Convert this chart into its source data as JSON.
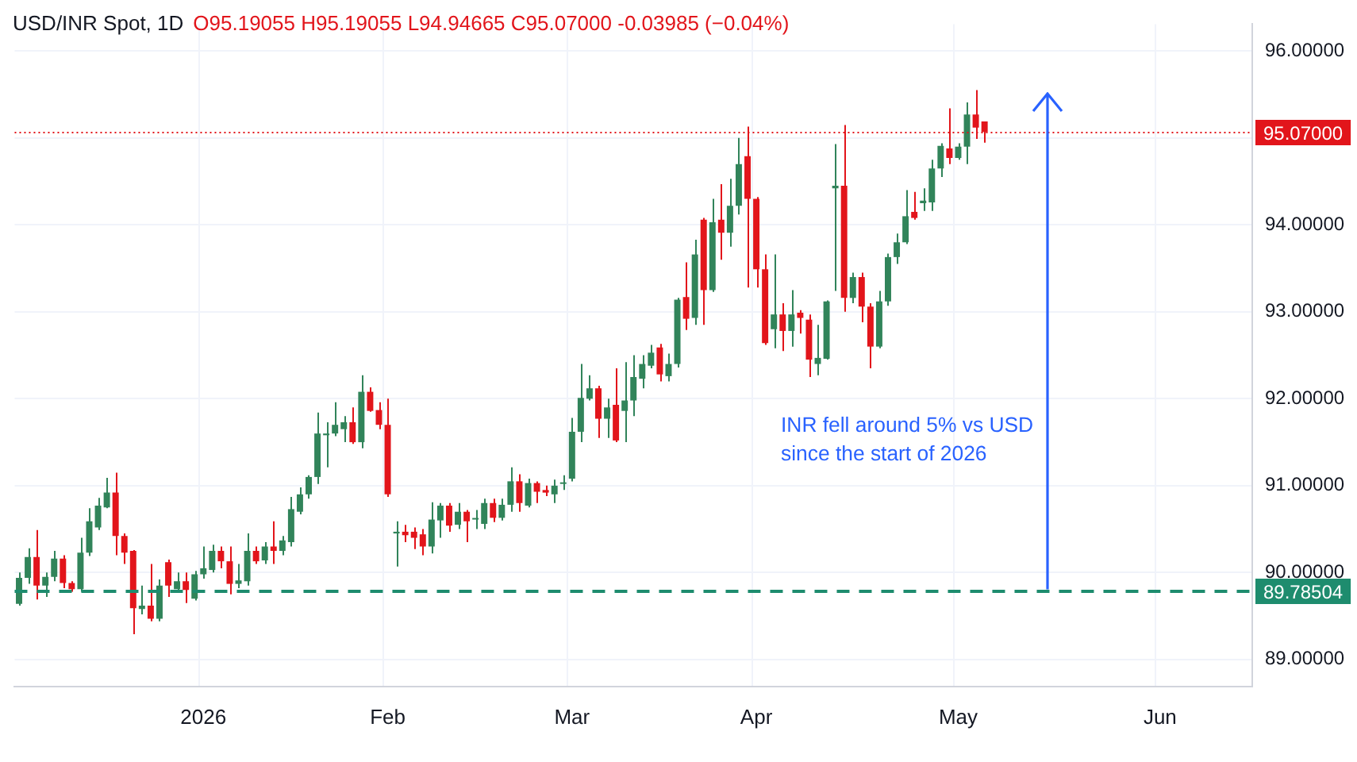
{
  "chart_data": {
    "type": "candlestick",
    "title": "USD/INR Spot, 1D",
    "subtitle": "O95.19055 H95.19055 L94.94665 C95.07000 -0.03985 (−0.04%)",
    "annotations": [
      "INR fell around 5% vs USD since the start of 2026"
    ],
    "categories": [
      null,
      null,
      null,
      null,
      null,
      null,
      null,
      null,
      null,
      null,
      null,
      null,
      null,
      null,
      null,
      null,
      null,
      null,
      null,
      null,
      null,
      "2026",
      null,
      null,
      null,
      null,
      null,
      null,
      null,
      null,
      null,
      null,
      null,
      null,
      null,
      null,
      null,
      null,
      null,
      null,
      null,
      null,
      "Feb",
      null,
      null,
      null,
      null,
      null,
      null,
      null,
      null,
      null,
      null,
      null,
      null,
      null,
      null,
      null,
      null,
      null,
      null,
      null,
      null,
      "Mar",
      null,
      null,
      null,
      null,
      null,
      null,
      null,
      null,
      null,
      null,
      null,
      null,
      null,
      null,
      null,
      null,
      null,
      null,
      null,
      null,
      "Apr",
      null,
      null,
      null,
      null,
      null,
      null,
      null,
      null,
      null,
      null,
      null,
      null,
      null,
      null,
      null,
      null,
      null,
      null,
      null,
      null,
      null,
      null,
      "May",
      null,
      null,
      null,
      null,
      null,
      null,
      null,
      null,
      null,
      null,
      null,
      null,
      null,
      null,
      null,
      null,
      null,
      null,
      null,
      null,
      null,
      null,
      "Jun",
      null,
      null,
      null,
      null,
      null,
      null,
      null,
      null,
      null,
      null
    ],
    "ohlc": [
      [
        89.64,
        90.0,
        89.62,
        89.94
      ],
      [
        89.94,
        90.28,
        89.87,
        90.18
      ],
      [
        90.18,
        90.49,
        89.69,
        89.85
      ],
      [
        89.85,
        90.0,
        89.72,
        89.95
      ],
      [
        89.95,
        90.25,
        89.9,
        90.16
      ],
      [
        90.16,
        90.2,
        89.82,
        89.88
      ],
      [
        89.88,
        89.9,
        89.78,
        89.81
      ],
      [
        89.81,
        90.4,
        89.78,
        90.23
      ],
      [
        90.23,
        90.74,
        90.19,
        90.59
      ],
      [
        90.52,
        90.86,
        90.49,
        90.77
      ],
      [
        90.75,
        91.09,
        90.74,
        90.92
      ],
      [
        90.92,
        91.15,
        90.2,
        90.42
      ],
      [
        90.42,
        90.45,
        90.1,
        90.23
      ],
      [
        90.25,
        90.26,
        89.29,
        89.59
      ],
      [
        89.58,
        89.85,
        89.52,
        89.62
      ],
      [
        89.62,
        90.1,
        89.44,
        89.47
      ],
      [
        89.47,
        89.92,
        89.44,
        89.85
      ],
      [
        90.12,
        90.15,
        89.72,
        89.85
      ],
      [
        89.81,
        90.0,
        89.78,
        89.9
      ],
      [
        89.9,
        90.0,
        89.65,
        89.8
      ],
      [
        89.7,
        90.02,
        89.68,
        89.98
      ],
      [
        89.98,
        90.3,
        89.93,
        90.05
      ],
      [
        90.03,
        90.32,
        90.0,
        90.25
      ],
      [
        90.25,
        90.3,
        90.05,
        90.13
      ],
      [
        90.13,
        90.3,
        89.75,
        89.87
      ],
      [
        89.87,
        90.1,
        89.82,
        89.91
      ],
      [
        89.9,
        90.45,
        89.85,
        90.25
      ],
      [
        90.25,
        90.3,
        90.1,
        90.13
      ],
      [
        90.14,
        90.35,
        90.1,
        90.3
      ],
      [
        90.3,
        90.59,
        90.1,
        90.25
      ],
      [
        90.25,
        90.42,
        90.2,
        90.37
      ],
      [
        90.35,
        90.87,
        90.3,
        90.73
      ],
      [
        90.7,
        90.98,
        90.67,
        90.9
      ],
      [
        90.9,
        91.12,
        90.85,
        91.1
      ],
      [
        91.1,
        91.84,
        91.02,
        91.6
      ],
      [
        91.58,
        91.73,
        91.21,
        91.6
      ],
      [
        91.6,
        91.96,
        91.57,
        91.7
      ],
      [
        91.65,
        91.8,
        91.5,
        91.73
      ],
      [
        91.73,
        91.9,
        91.48,
        91.5
      ],
      [
        91.5,
        92.27,
        91.43,
        92.08
      ],
      [
        92.08,
        92.13,
        91.85,
        91.86
      ],
      [
        91.87,
        91.96,
        91.65,
        91.7
      ],
      [
        91.7,
        92.0,
        90.87,
        90.9
      ],
      [
        90.45,
        90.59,
        90.07,
        90.47
      ],
      [
        90.47,
        90.55,
        90.35,
        90.43
      ],
      [
        90.47,
        90.52,
        90.27,
        90.4
      ],
      [
        90.44,
        90.5,
        90.2,
        90.3
      ],
      [
        90.3,
        90.81,
        90.22,
        90.61
      ],
      [
        90.6,
        90.8,
        90.4,
        90.77
      ],
      [
        90.77,
        90.8,
        90.47,
        90.54
      ],
      [
        90.55,
        90.8,
        90.5,
        90.7
      ],
      [
        90.7,
        90.72,
        90.35,
        90.59
      ],
      [
        90.61,
        90.72,
        90.5,
        90.62
      ],
      [
        90.56,
        90.85,
        90.5,
        90.8
      ],
      [
        90.8,
        90.85,
        90.58,
        90.63
      ],
      [
        90.63,
        90.85,
        90.6,
        90.78
      ],
      [
        90.78,
        91.21,
        90.7,
        91.05
      ],
      [
        91.05,
        91.13,
        90.7,
        90.8
      ],
      [
        90.77,
        91.08,
        90.75,
        91.03
      ],
      [
        91.03,
        91.05,
        90.8,
        90.93
      ],
      [
        90.95,
        91.0,
        90.88,
        90.92
      ],
      [
        90.9,
        91.07,
        90.8,
        91.0
      ],
      [
        91.02,
        91.12,
        90.95,
        91.03
      ],
      [
        91.08,
        91.78,
        91.05,
        91.62
      ],
      [
        91.62,
        92.4,
        91.5,
        92.01
      ],
      [
        92.0,
        92.27,
        91.98,
        92.12
      ],
      [
        92.12,
        92.15,
        91.55,
        91.77
      ],
      [
        91.77,
        92.0,
        91.55,
        91.9
      ],
      [
        91.93,
        92.35,
        91.5,
        91.52
      ],
      [
        91.86,
        92.42,
        91.5,
        91.98
      ],
      [
        91.98,
        92.5,
        91.8,
        92.25
      ],
      [
        92.23,
        92.5,
        92.12,
        92.4
      ],
      [
        92.38,
        92.62,
        92.35,
        92.53
      ],
      [
        92.59,
        92.63,
        92.2,
        92.28
      ],
      [
        92.26,
        92.52,
        92.2,
        92.4
      ],
      [
        92.4,
        93.16,
        92.36,
        93.14
      ],
      [
        93.17,
        93.57,
        92.79,
        92.92
      ],
      [
        92.93,
        93.83,
        92.85,
        93.66
      ],
      [
        94.06,
        94.08,
        92.85,
        93.25
      ],
      [
        93.25,
        94.3,
        93.23,
        94.03
      ],
      [
        94.06,
        94.47,
        93.6,
        93.91
      ],
      [
        93.91,
        94.53,
        93.75,
        94.22
      ],
      [
        94.22,
        95.0,
        94.12,
        94.7
      ],
      [
        94.79,
        95.13,
        93.28,
        94.3
      ],
      [
        94.3,
        94.32,
        93.28,
        93.49
      ],
      [
        93.49,
        93.66,
        92.62,
        92.64
      ],
      [
        92.8,
        93.66,
        92.58,
        92.97
      ],
      [
        92.97,
        93.1,
        92.55,
        92.78
      ],
      [
        92.78,
        93.25,
        92.6,
        92.97
      ],
      [
        92.99,
        93.02,
        92.75,
        92.93
      ],
      [
        92.91,
        92.97,
        92.25,
        92.45
      ],
      [
        92.4,
        92.85,
        92.27,
        92.47
      ],
      [
        92.46,
        93.13,
        92.45,
        93.12
      ],
      [
        94.42,
        94.93,
        93.24,
        94.45
      ],
      [
        94.45,
        95.15,
        93.0,
        93.16
      ],
      [
        93.16,
        93.45,
        93.1,
        93.4
      ],
      [
        93.4,
        93.45,
        92.88,
        93.06
      ],
      [
        93.06,
        93.1,
        92.35,
        92.6
      ],
      [
        92.6,
        93.24,
        92.58,
        93.12
      ],
      [
        93.12,
        93.67,
        93.07,
        93.63
      ],
      [
        93.63,
        93.9,
        93.55,
        93.8
      ],
      [
        93.8,
        94.4,
        93.78,
        94.1
      ],
      [
        94.15,
        94.38,
        94.06,
        94.08
      ],
      [
        94.25,
        94.42,
        94.16,
        94.28
      ],
      [
        94.26,
        94.75,
        94.16,
        94.65
      ],
      [
        94.65,
        94.94,
        94.55,
        94.91
      ],
      [
        94.88,
        95.34,
        94.7,
        94.77
      ],
      [
        94.77,
        94.94,
        94.75,
        94.9
      ],
      [
        94.9,
        95.41,
        94.7,
        95.27
      ],
      [
        95.27,
        95.55,
        94.99,
        95.12
      ],
      [
        95.19055,
        95.19055,
        94.94665,
        95.07
      ],
      null,
      null,
      null,
      null,
      null,
      null,
      null,
      null,
      null,
      null,
      null,
      null,
      null,
      null,
      null,
      null,
      null,
      null,
      null,
      null,
      null,
      null,
      null,
      null,
      null,
      null,
      null,
      null,
      null,
      null
    ],
    "colors": [
      "#31845a",
      "#31845a",
      "#e2151b",
      "#31845a",
      "#31845a",
      "#e2151b",
      "#e2151b",
      "#31845a",
      "#31845a",
      "#31845a",
      "#31845a",
      "#e2151b",
      "#e2151b",
      "#e2151b",
      "#31845a",
      "#e2151b",
      "#31845a",
      "#e2151b",
      "#31845a",
      "#e2151b",
      "#31845a",
      "#31845a",
      "#31845a",
      "#e2151b",
      "#e2151b",
      "#31845a",
      "#31845a",
      "#e2151b",
      "#31845a",
      "#e2151b",
      "#31845a",
      "#31845a",
      "#31845a",
      "#31845a",
      "#31845a",
      "#31845a",
      "#31845a",
      "#31845a",
      "#e2151b",
      "#31845a",
      "#e2151b",
      "#e2151b",
      "#e2151b",
      "#31845a",
      "#e2151b",
      "#e2151b",
      "#e2151b",
      "#31845a",
      "#31845a",
      "#e2151b",
      "#31845a",
      "#e2151b",
      "#31845a",
      "#31845a",
      "#e2151b",
      "#31845a",
      "#31845a",
      "#e2151b",
      "#31845a",
      "#e2151b",
      "#e2151b",
      "#31845a",
      "#31845a",
      "#31845a",
      "#31845a",
      "#31845a",
      "#e2151b",
      "#31845a",
      "#e2151b",
      "#31845a",
      "#31845a",
      "#31845a",
      "#31845a",
      "#e2151b",
      "#31845a",
      "#31845a",
      "#e2151b",
      "#31845a",
      "#e2151b",
      "#31845a",
      "#e2151b",
      "#31845a",
      "#31845a",
      "#e2151b",
      "#e2151b",
      "#e2151b",
      "#31845a",
      "#e2151b",
      "#31845a",
      "#e2151b",
      "#e2151b",
      "#31845a",
      "#31845a",
      "#31845a",
      "#e2151b",
      "#31845a",
      "#e2151b",
      "#e2151b",
      "#31845a",
      "#31845a",
      "#31845a",
      "#31845a",
      "#e2151b",
      "#31845a",
      "#31845a",
      "#31845a",
      "#e2151b",
      "#31845a",
      "#31845a",
      "#e2151b",
      "#e2151b",
      null,
      null,
      null,
      null,
      null,
      null,
      null,
      null,
      null,
      null,
      null,
      null,
      null,
      null,
      null,
      null,
      null,
      null,
      null,
      null,
      null,
      null,
      null,
      null,
      null,
      null,
      null,
      null,
      null,
      null
    ],
    "ylim": [
      88.69,
      96.31
    ],
    "yticks": [
      {
        "value": 89,
        "label": "89.00000"
      },
      {
        "value": 90,
        "label": "90.00000"
      },
      {
        "value": 91,
        "label": "91.00000"
      },
      {
        "value": 92,
        "label": "92.00000"
      },
      {
        "value": 93,
        "label": "93.00000"
      },
      {
        "value": 94,
        "label": "94.00000"
      },
      {
        "value": 95,
        "label": null
      },
      {
        "value": 96,
        "label": "96.00000"
      }
    ],
    "ref_lines": [
      {
        "axis": "y",
        "value": 95.07,
        "label": "95.07000",
        "color": "#e2151b",
        "line_style": "dotted"
      },
      {
        "axis": "y",
        "value": 89.78504,
        "label": "89.78504",
        "color": "#1e8c6e",
        "line_style": "dashed"
      }
    ],
    "grid": true
  }
}
